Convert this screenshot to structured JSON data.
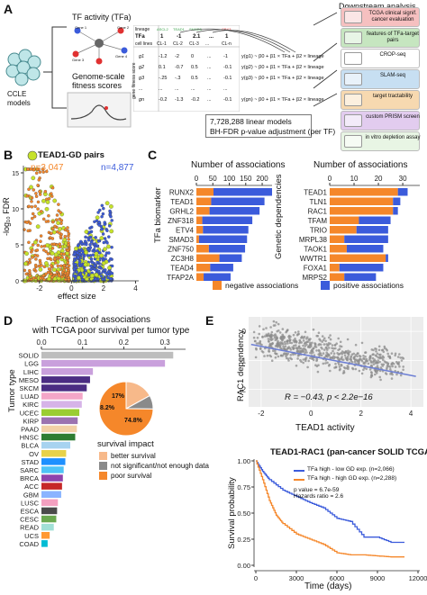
{
  "panel_a": {
    "letter": "A",
    "tfa_title": "TF activity (TFa)",
    "fitness_title": "Genome-scale fitness scores",
    "ccle": "CCLE models",
    "genes": [
      "Gene 1",
      "Gene 2",
      "Gene 3",
      "Gene 4",
      "Gene 5",
      "Gene 6"
    ],
    "table_headers": [
      "lineage",
      "TFa",
      "cell lines"
    ],
    "gene_cols": [
      "ASCL2",
      "TEAD1",
      "SMAD3",
      "...",
      "CBX3"
    ],
    "tfa_row": [
      "1",
      "-1",
      "2.1",
      "...",
      "1"
    ],
    "cl_row": [
      "CL-1",
      "CL-2",
      "CL-3",
      "...",
      "CL-n"
    ],
    "gene_rows": [
      "g1",
      "g2",
      "g3",
      "...",
      "gn"
    ],
    "row_values": [
      [
        "-1.2",
        "-2",
        "0",
        "...",
        "-1"
      ],
      [
        "0.1",
        "-0.7",
        "0.5",
        "...",
        "-0.1"
      ],
      [
        "-.25",
        "-.3",
        "0.5",
        "...",
        "-0.1"
      ],
      [
        "...",
        "...",
        "...",
        "...",
        "..."
      ],
      [
        "-0.2",
        "-1.3",
        "-0.2",
        "...",
        "-0.1"
      ]
    ],
    "fitness_axis": "gene fitness score",
    "equations": [
      "y(g1) ~ β0 + β1 × TFa + β2 × lineage",
      "y(g2) ~ β0 + β1 × TFa + β2 × lineage",
      "y(g3) ~ β0 + β1 × TFa + β2 × lineage",
      "y(gn) ~ β0 + β1 × TFa + β2 × lineage"
    ],
    "models_line1": "7,728,288 linear models",
    "models_line2": "BH-FDR p-value adjustment (per TF)",
    "downstream_title": "Downstream analysis",
    "downstream_items": [
      {
        "label": "TCGA clinical signif. cancer evaluation",
        "color": "#f6c0c0"
      },
      {
        "label": "features of TFa-target pairs",
        "color": "#c6e6c0"
      },
      {
        "label": "CROP-seq",
        "color": "#ffffff"
      },
      {
        "label": "SLAM-seq",
        "color": "#c7dff2"
      },
      {
        "label": "target tractability",
        "color": "#f7d9b0"
      },
      {
        "label": "custom PRISM screen",
        "color": "#e2ccef"
      },
      {
        "label": "in vitro depletion assay",
        "color": "#e8f5e4"
      }
    ]
  },
  "panel_b": {
    "letter": "B",
    "legend": "TEAD1-GD pairs",
    "n_neg": "n=3,047",
    "n_pos": "n=4,877",
    "ylabel": "-log₁₀ FDR",
    "xlabel": "effect size",
    "xticks": [
      "-2",
      "0",
      "2",
      "4"
    ],
    "yticks": [
      "0",
      "5",
      "10",
      "15"
    ]
  },
  "panel_c": {
    "letter": "C",
    "left_title": "Number of associations",
    "right_title": "Number of associations",
    "left_ylabel": "TFa biomarker",
    "right_ylabel": "Genetic dependencies",
    "left_xticks": [
      "0",
      "50",
      "100",
      "150",
      "200"
    ],
    "right_xticks": [
      "0",
      "10",
      "20",
      "30"
    ],
    "legend_neg": "negative associations",
    "legend_pos": "positive associations",
    "neg_color": "#f5872a",
    "pos_color": "#3b5bdb"
  },
  "panel_d": {
    "letter": "D",
    "title_line1": "Fraction of associations",
    "title_line2": "with TCGA poor survival per tumor type",
    "xticks": [
      "0.0",
      "0.1",
      "0.2",
      "0.3"
    ],
    "ylabel": "Tumor type",
    "pie_labels": [
      "17%",
      "8.2%",
      "74.8%"
    ],
    "legend_title": "survival impact",
    "legend_items": [
      {
        "label": "better survival",
        "color": "#f7b98a"
      },
      {
        "label": "not significant/not enough data",
        "color": "#8a8a8a"
      },
      {
        "label": "poor survival",
        "color": "#f5872a"
      }
    ]
  },
  "panel_e": {
    "letter": "E",
    "scatter_ylabel": "RAC1 dependency",
    "scatter_xlabel": "TEAD1 activity",
    "scatter_stat": "R = −0.43, p < 2.2e−16",
    "scatter_xticks": [
      "-2",
      "0",
      "2",
      "4"
    ],
    "scatter_yticks": [
      "0",
      "-1",
      "-2"
    ],
    "km_title": "TEAD1-RAC1 (pan-cancer SOLID TCGA)",
    "km_legend": [
      {
        "label": "TFa high - low GD exp. (n=2,066)",
        "color": "#3b5bdb"
      },
      {
        "label": "TFa high - high GD exp. (n=2,288)",
        "color": "#f5872a"
      }
    ],
    "km_pvalue": "p value = 6.7e-59",
    "km_hr": "Hazards ratio = 2.6",
    "km_ylabel": "Survival probability",
    "km_xlabel": "Time (days)",
    "km_xticks": [
      "0",
      "3000",
      "6000",
      "9000",
      "12000"
    ],
    "km_yticks": [
      "0.00",
      "0.25",
      "0.50",
      "0.75",
      "1.00"
    ]
  },
  "chart_data": [
    {
      "type": "bar",
      "title": "Number of associations",
      "ylabel": "TFa biomarker",
      "xlim": [
        0,
        230
      ],
      "categories": [
        "RUNX2",
        "TEAD1",
        "GRHL2",
        "ZNF318",
        "ETV4",
        "SMAD3",
        "ZNF750",
        "ZC3H8",
        "TEAD4",
        "TFAP2A"
      ],
      "series": [
        {
          "name": "negative associations",
          "values": [
            52,
            45,
            40,
            18,
            20,
            8,
            38,
            70,
            42,
            22
          ]
        },
        {
          "name": "positive associations",
          "values": [
            178,
            162,
            152,
            152,
            138,
            146,
            110,
            68,
            70,
            82
          ]
        }
      ]
    },
    {
      "type": "bar",
      "title": "Number of associations",
      "ylabel": "Genetic dependencies",
      "xlim": [
        0,
        37
      ],
      "categories": [
        "TEAD1",
        "TLN1",
        "RAC1",
        "TFAM",
        "TRIO",
        "MRPL38",
        "TAOK1",
        "WWTR1",
        "FOXA1",
        "MRPS2"
      ],
      "series": [
        {
          "name": "negative associations",
          "values": [
            28,
            26,
            26,
            12,
            11,
            6,
            7,
            23,
            4,
            6
          ]
        },
        {
          "name": "positive associations",
          "values": [
            4,
            3,
            2,
            13,
            13,
            18,
            15,
            1,
            18,
            13
          ]
        }
      ]
    },
    {
      "type": "bar",
      "title": "Fraction of associations with TCGA poor survival per tumor type",
      "ylabel": "Tumor type",
      "xlim": [
        0,
        0.35
      ],
      "categories": [
        "SOLID",
        "LGG",
        "LIHC",
        "MESO",
        "SKCM",
        "LUAD",
        "KIRC",
        "UCEC",
        "KIRP",
        "PAAD",
        "HNSC",
        "BLCA",
        "OV",
        "STAD",
        "SARC",
        "BRCA",
        "ACC",
        "GBM",
        "LUSC",
        "ESCA",
        "CESC",
        "READ",
        "UCS",
        "COAD"
      ],
      "values": [
        0.32,
        0.3,
        0.125,
        0.118,
        0.11,
        0.1,
        0.098,
        0.092,
        0.088,
        0.086,
        0.082,
        0.07,
        0.06,
        0.058,
        0.054,
        0.052,
        0.05,
        0.048,
        0.04,
        0.038,
        0.036,
        0.03,
        0.02,
        0.015
      ]
    },
    {
      "type": "pie",
      "labels": [
        "better survival",
        "not significant/not enough data",
        "poor survival"
      ],
      "values": [
        17,
        8.2,
        74.8
      ]
    },
    {
      "type": "scatter",
      "xlabel": "TEAD1 activity",
      "ylabel": "RAC1 dependency",
      "xlim": [
        -2.5,
        4.5
      ],
      "ylim": [
        -2.6,
        0.5
      ],
      "fit": {
        "x": [
          -2.4,
          4.2
        ],
        "y": [
          -0.45,
          -1.55
        ]
      }
    },
    {
      "type": "line",
      "title": "TEAD1-RAC1 (pan-cancer SOLID TCGA)",
      "xlabel": "Time (days)",
      "ylabel": "Survival probability",
      "xlim": [
        0,
        12000
      ],
      "ylim": [
        0,
        1
      ],
      "series": [
        {
          "name": "TFa high - low GD exp. (n=2,066)",
          "x": [
            0,
            500,
            1000,
            2000,
            3000,
            4000,
            5000,
            6000,
            7000,
            8000,
            9000,
            10000,
            11000
          ],
          "y": [
            1.0,
            0.9,
            0.82,
            0.72,
            0.66,
            0.6,
            0.55,
            0.45,
            0.42,
            0.27,
            0.27,
            0.22,
            0.22
          ]
        },
        {
          "name": "TFa high - high GD exp. (n=2,288)",
          "x": [
            0,
            500,
            1000,
            1500,
            2000,
            3000,
            4000,
            5000,
            6000,
            7000,
            8000,
            9000,
            10000,
            11000
          ],
          "y": [
            1.0,
            0.82,
            0.62,
            0.48,
            0.4,
            0.3,
            0.25,
            0.2,
            0.12,
            0.1,
            0.1,
            0.09,
            0.08,
            0.08
          ]
        }
      ]
    }
  ]
}
